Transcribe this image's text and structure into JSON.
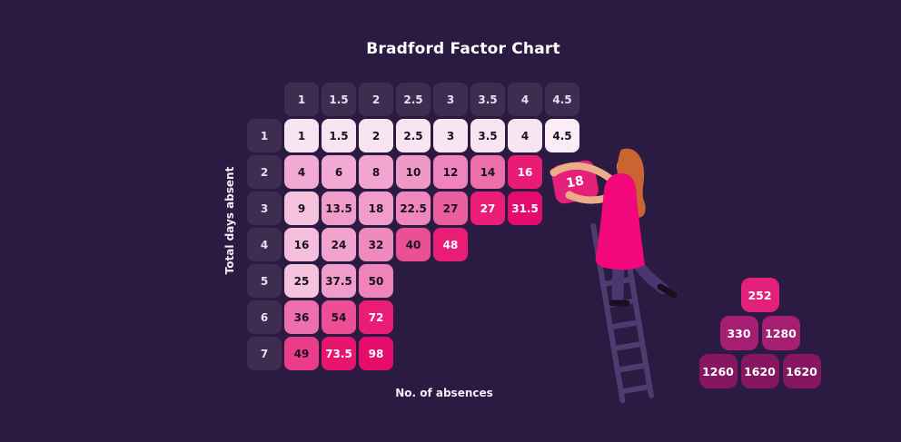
{
  "title": "Bradford Factor Chart",
  "x_axis_label": "No. of absences",
  "y_axis_label": "Total days absent",
  "colors": {
    "background": "#2b1a42",
    "header_cell_bg": "#3e2c51",
    "header_text": "#e7e0ef",
    "cell_text_dark": "#1a1024",
    "cell_text_light": "#ffffff",
    "ladder": "#4e3c71",
    "dress_pink": "#f2077d",
    "held_block_pink": "#e3217a"
  },
  "grid": {
    "column_headers": [
      "1",
      "1.5",
      "2",
      "2.5",
      "3",
      "3.5",
      "4",
      "4.5"
    ],
    "rows": [
      {
        "header": "1",
        "cells": [
          {
            "v": "1",
            "bg": "#f9e4f1",
            "fg": "dark"
          },
          {
            "v": "1.5",
            "bg": "#f9e4f1",
            "fg": "dark"
          },
          {
            "v": "2",
            "bg": "#f9e4f1",
            "fg": "dark"
          },
          {
            "v": "2.5",
            "bg": "#f9e4f1",
            "fg": "dark"
          },
          {
            "v": "3",
            "bg": "#f9e4f1",
            "fg": "dark"
          },
          {
            "v": "3.5",
            "bg": "#f9e4f1",
            "fg": "dark"
          },
          {
            "v": "4",
            "bg": "#f9e4f1",
            "fg": "dark"
          },
          {
            "v": "4.5",
            "bg": "#fbecf6",
            "fg": "dark"
          }
        ]
      },
      {
        "header": "2",
        "cells": [
          {
            "v": "4",
            "bg": "#f2a9d3",
            "fg": "dark"
          },
          {
            "v": "6",
            "bg": "#f2a9d3",
            "fg": "dark"
          },
          {
            "v": "8",
            "bg": "#f1a5d0",
            "fg": "dark"
          },
          {
            "v": "10",
            "bg": "#ef99c8",
            "fg": "dark"
          },
          {
            "v": "12",
            "bg": "#ee84bb",
            "fg": "dark"
          },
          {
            "v": "14",
            "bg": "#ec6fab",
            "fg": "dark"
          },
          {
            "v": "16",
            "bg": "#e91c75",
            "fg": "light"
          }
        ]
      },
      {
        "header": "3",
        "cells": [
          {
            "v": "9",
            "bg": "#f6c3df",
            "fg": "dark"
          },
          {
            "v": "13.5",
            "bg": "#f09dca",
            "fg": "dark"
          },
          {
            "v": "18",
            "bg": "#f09dca",
            "fg": "dark"
          },
          {
            "v": "22.5",
            "bg": "#ee87bc",
            "fg": "dark"
          },
          {
            "v": "27",
            "bg": "#ec5f9e",
            "fg": "dark"
          },
          {
            "v": "27",
            "bg": "#ea1d77",
            "fg": "light"
          },
          {
            "v": "31.5",
            "bg": "#e50b6c",
            "fg": "light"
          }
        ]
      },
      {
        "header": "4",
        "cells": [
          {
            "v": "16",
            "bg": "#f5bedc",
            "fg": "dark"
          },
          {
            "v": "24",
            "bg": "#f1a3cd",
            "fg": "dark"
          },
          {
            "v": "32",
            "bg": "#ee8abd",
            "fg": "dark"
          },
          {
            "v": "40",
            "bg": "#eb4f95",
            "fg": "dark"
          },
          {
            "v": "48",
            "bg": "#e91d76",
            "fg": "light"
          }
        ]
      },
      {
        "header": "5",
        "cells": [
          {
            "v": "25",
            "bg": "#f6c3df",
            "fg": "dark"
          },
          {
            "v": "37.5",
            "bg": "#f09dca",
            "fg": "dark"
          },
          {
            "v": "50",
            "bg": "#ee84ba",
            "fg": "dark"
          }
        ]
      },
      {
        "header": "6",
        "cells": [
          {
            "v": "36",
            "bg": "#ed6fae",
            "fg": "dark"
          },
          {
            "v": "54",
            "bg": "#ec4f96",
            "fg": "dark"
          },
          {
            "v": "72",
            "bg": "#e91d76",
            "fg": "light"
          }
        ]
      },
      {
        "header": "7",
        "cells": [
          {
            "v": "49",
            "bg": "#eb3c8a",
            "fg": "dark"
          },
          {
            "v": "73.5",
            "bg": "#e8156f",
            "fg": "light"
          },
          {
            "v": "98",
            "bg": "#e50c6b",
            "fg": "light"
          }
        ]
      }
    ]
  },
  "illustration": {
    "held_block_value": "18"
  },
  "pyramid": {
    "rows": [
      [
        {
          "v": "252",
          "bg": "#e3217a"
        }
      ],
      [
        {
          "v": "330",
          "bg": "#a51e72"
        },
        {
          "v": "1280",
          "bg": "#a51e72"
        }
      ],
      [
        {
          "v": "1260",
          "bg": "#871660"
        },
        {
          "v": "1620",
          "bg": "#871660"
        },
        {
          "v": "1620",
          "bg": "#871660"
        }
      ]
    ]
  },
  "chart_data": {
    "type": "heatmap",
    "title": "Bradford Factor Chart",
    "xlabel": "No. of absences",
    "ylabel": "Total days absent",
    "x_categories": [
      1,
      1.5,
      2,
      2.5,
      3,
      3.5,
      4,
      4.5
    ],
    "y_categories": [
      1,
      2,
      3,
      4,
      5,
      6,
      7
    ],
    "rows": [
      [
        1,
        1.5,
        2,
        2.5,
        3,
        3.5,
        4,
        4.5
      ],
      [
        4,
        6,
        8,
        10,
        12,
        14,
        16
      ],
      [
        9,
        13.5,
        18,
        22.5,
        27,
        27,
        31.5
      ],
      [
        16,
        24,
        32,
        40,
        48
      ],
      [
        25,
        37.5,
        50
      ],
      [
        36,
        54,
        72
      ],
      [
        49,
        73.5,
        98
      ]
    ],
    "floating_block_value": 18,
    "stacked_blocks": [
      [
        252
      ],
      [
        330,
        1280
      ],
      [
        1260,
        1620,
        1620
      ]
    ],
    "legend_position": "none",
    "grid_lines": false
  }
}
